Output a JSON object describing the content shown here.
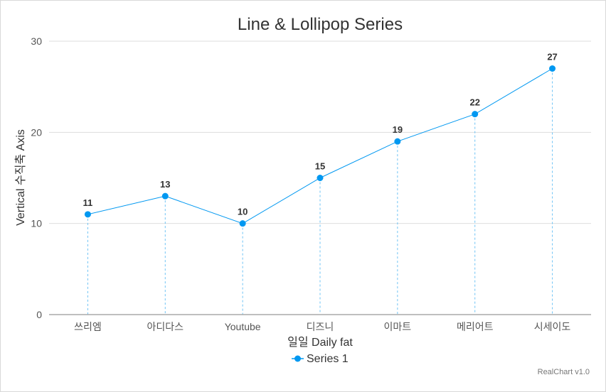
{
  "chart_data": {
    "type": "line",
    "title": "Line & Lollipop Series",
    "xlabel": "일일 Daily fat",
    "ylabel": "Vertical 수직축 Axis",
    "categories": [
      "쓰리엠",
      "아디다스",
      "Youtube",
      "디즈니",
      "이마트",
      "메리어트",
      "시세이도"
    ],
    "series": [
      {
        "name": "Series 1",
        "values": [
          11,
          13,
          10,
          15,
          19,
          22,
          27
        ],
        "color": "#0098f1"
      }
    ],
    "ylim": [
      0,
      30
    ],
    "yticks": [
      0,
      10,
      20,
      30
    ],
    "grid": true,
    "lollipop_stems": true,
    "data_labels": true,
    "legend_position": "bottom"
  },
  "credit": "RealChart v1.0"
}
